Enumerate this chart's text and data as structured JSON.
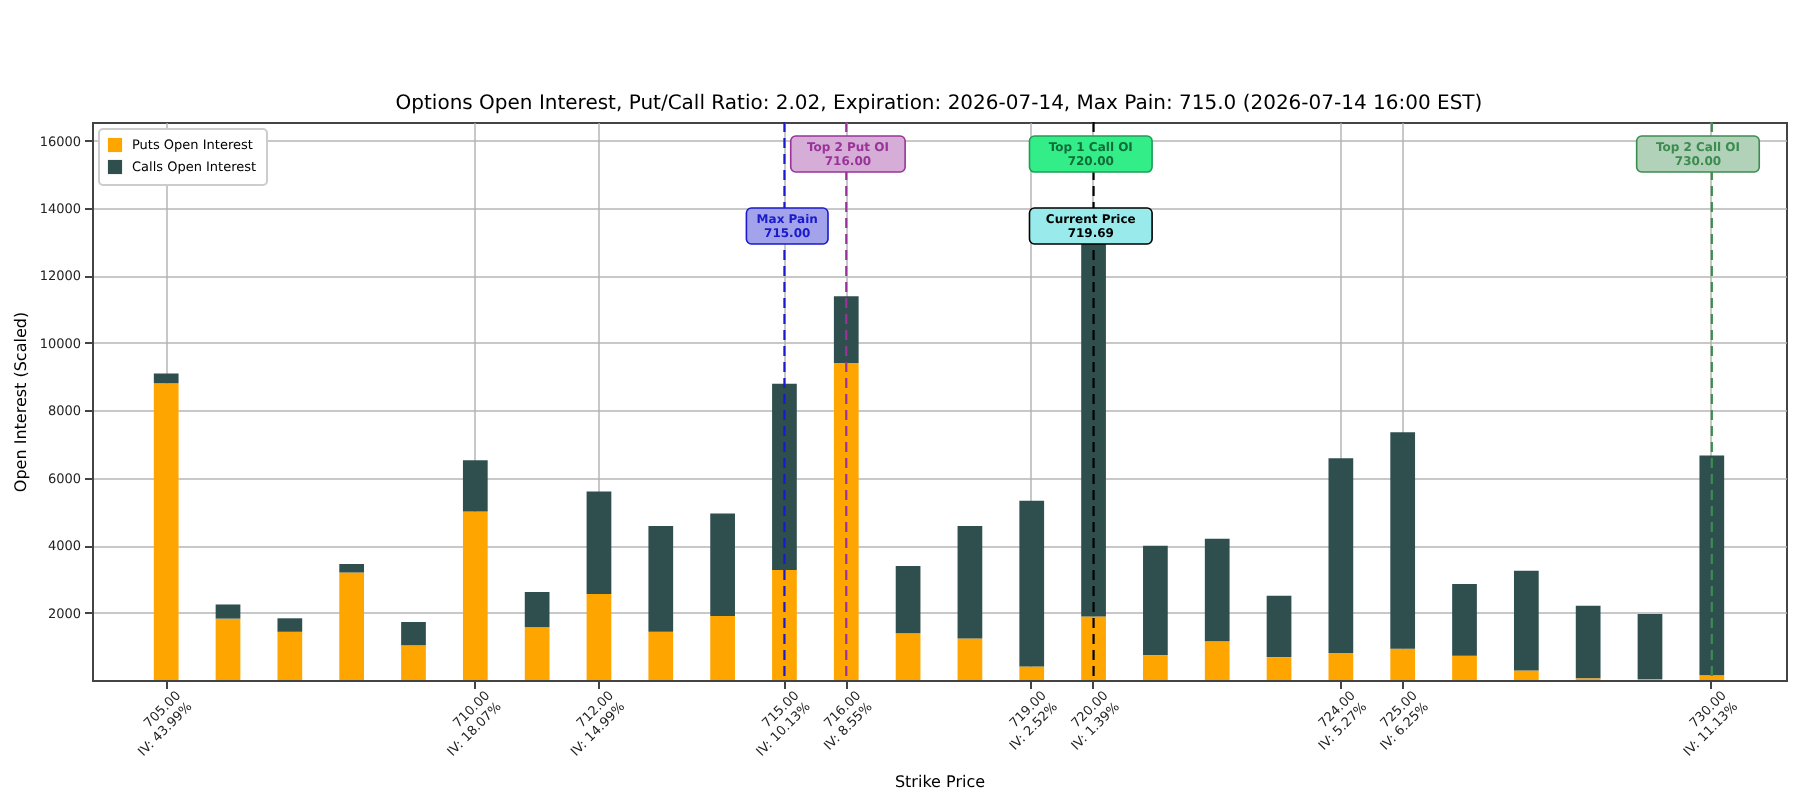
{
  "chart_data": {
    "type": "bar",
    "title": "Options Open Interest, Put/Call Ratio: 2.02, Expiration: 2026-07-14, Max Pain: 715.0 (2026-07-14 16:00 EST)",
    "xlabel": "Strike Price",
    "ylabel": "Open Interest (Scaled)",
    "categories": [
      "705.00\nIV: 43.99%",
      null,
      null,
      null,
      null,
      "710.00\nIV: 18.07%",
      null,
      "712.00\nIV: 14.99%",
      null,
      null,
      "715.00\nIV: 10.13%",
      "716.00\nIV: 8.55%",
      null,
      null,
      "719.00\nIV: 2.52%",
      "720.00\nIV: 1.39%",
      null,
      null,
      null,
      "724.00\nIV: 5.27%",
      "725.00\nIV: 6.25%",
      null,
      null,
      null,
      null,
      "730.00\nIV: 11.13%"
    ],
    "series": [
      {
        "name": "Puts Open Interest",
        "color": "#ffa500",
        "values": [
          8800,
          1820,
          1430,
          3190,
          1030,
          5000,
          1570,
          2550,
          1430,
          1900,
          3260,
          9400,
          1390,
          1230,
          400,
          1880,
          740,
          1150,
          680,
          800,
          930,
          720,
          280,
          50,
          30,
          140
        ]
      },
      {
        "name": "Calls Open Interest",
        "color": "#2f4f4f",
        "values": [
          290,
          420,
          400,
          250,
          690,
          1520,
          1040,
          3040,
          3140,
          3040,
          5530,
          1980,
          1990,
          3340,
          4920,
          11160,
          3240,
          3040,
          1820,
          5780,
          6420,
          2130,
          2960,
          2150,
          1930,
          6520
        ]
      }
    ],
    "stacked": true,
    "ylim": [
      0,
      16550
    ],
    "yticks": [
      2000,
      4000,
      6000,
      8000,
      10000,
      12000,
      14000,
      16000
    ],
    "grid": true,
    "legend": "top left",
    "ref_lines": [
      {
        "axis": "x",
        "value": "716.00\nIV: 8.55%",
        "label": "Top 2 Put OI\n716.00",
        "color": "#993399",
        "line_style": "dashed"
      },
      {
        "axis": "x",
        "value": "715.00\nIV: 10.13%",
        "label": "Max Pain\n715.00",
        "color": "#1a1acc",
        "line_style": "dashed"
      },
      {
        "axis": "x",
        "value": "720.00\nIV: 1.39%",
        "label": "Current Price\n719.69",
        "color": "#000000",
        "line_style": "dashed"
      },
      {
        "axis": "x",
        "value": "730.00\nIV: 11.13%",
        "label": "Top 2 Call OI\n730.00",
        "color": "#3c8c50",
        "line_style": "dashed"
      }
    ],
    "annotations": [
      {
        "text": "Top 1 Call OI\n720.00",
        "x": "720.00\nIV: 1.39%",
        "y": 15600
      }
    ]
  }
}
